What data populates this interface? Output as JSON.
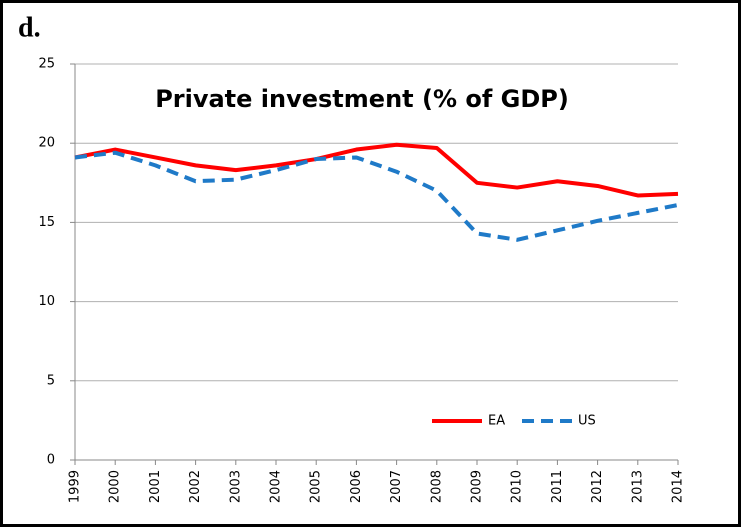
{
  "chart_data": {
    "type": "line",
    "panel_label": "d.",
    "title": "Private investment (% of GDP)",
    "categories": [
      "1999",
      "2000",
      "2001",
      "2002",
      "2003",
      "2004",
      "2005",
      "2006",
      "2007",
      "2008",
      "2009",
      "2010",
      "2011",
      "2012",
      "2013",
      "2014"
    ],
    "series": [
      {
        "name": "EA",
        "color": "#ff0000",
        "dash": false,
        "values": [
          19.1,
          19.6,
          19.1,
          18.6,
          18.3,
          18.6,
          19.0,
          19.6,
          19.9,
          19.7,
          17.5,
          17.2,
          17.6,
          17.3,
          16.7,
          16.8
        ]
      },
      {
        "name": "US",
        "color": "#1f7ac8",
        "dash": true,
        "values": [
          19.1,
          19.4,
          18.6,
          17.6,
          17.7,
          18.3,
          19.0,
          19.1,
          18.2,
          17.0,
          14.3,
          13.9,
          14.5,
          15.1,
          15.6,
          16.1
        ]
      }
    ],
    "ylim": [
      0,
      25
    ],
    "yticks": [
      0,
      5,
      10,
      15,
      20,
      25
    ],
    "grid": true,
    "legend": "lower right"
  }
}
